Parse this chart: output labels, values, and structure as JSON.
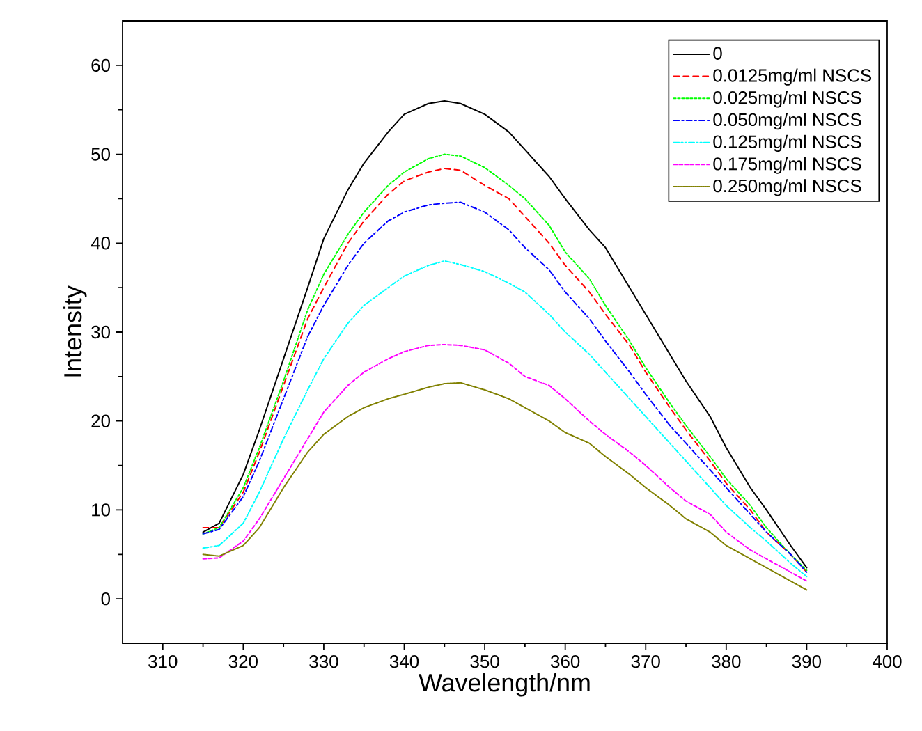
{
  "chart_data": {
    "type": "line",
    "xlabel": "Wavelength/nm",
    "ylabel": "Intensity",
    "xlim": [
      305,
      400
    ],
    "ylim": [
      -5,
      65
    ],
    "xticks": [
      310,
      320,
      330,
      340,
      350,
      360,
      370,
      380,
      390,
      400
    ],
    "yticks": [
      0,
      10,
      20,
      30,
      40,
      50,
      60
    ],
    "legend": "top right",
    "grid": false,
    "x": [
      315,
      317,
      320,
      322,
      325,
      328,
      330,
      333,
      335,
      338,
      340,
      343,
      345,
      347,
      350,
      353,
      355,
      358,
      360,
      363,
      365,
      368,
      370,
      373,
      375,
      378,
      380,
      383,
      385,
      388,
      390
    ],
    "series": [
      {
        "name": "0",
        "color": "#000000",
        "line_style": "solid",
        "values": [
          7.5,
          8.5,
          14,
          19,
          27,
          35,
          40.5,
          46,
          49,
          52.5,
          54.5,
          55.7,
          56,
          55.7,
          54.5,
          52.5,
          50.5,
          47.5,
          45,
          41.5,
          39.5,
          35,
          32,
          27.5,
          24.5,
          20.5,
          17,
          12.5,
          10,
          6,
          3.5
        ]
      },
      {
        "name": "0.0125mg/ml NSCS",
        "color": "#ff0000",
        "line_style": "dashed",
        "values": [
          8,
          8,
          12,
          16.5,
          24,
          31.5,
          35,
          40,
          42.5,
          45.5,
          47,
          48,
          48.4,
          48.2,
          46.5,
          45,
          43,
          40,
          37.5,
          34.5,
          32,
          28.5,
          25.5,
          21.5,
          19,
          15.5,
          13,
          10,
          7.5,
          5,
          3
        ]
      },
      {
        "name": "0.025mg/ml NSCS",
        "color": "#00ff00",
        "line_style": "dotted",
        "values": [
          7.3,
          8,
          12.5,
          17,
          24.5,
          32.5,
          36.5,
          41,
          43.5,
          46.5,
          48,
          49.5,
          50,
          49.8,
          48.5,
          46.5,
          45,
          42,
          39,
          36,
          33,
          29,
          26,
          22,
          19.5,
          16,
          13.5,
          10.5,
          8,
          5,
          3.2
        ]
      },
      {
        "name": "0.050mg/ml NSCS",
        "color": "#0000ff",
        "line_style": "dashdot",
        "values": [
          7.3,
          7.8,
          11.5,
          15.5,
          22.5,
          29.5,
          33,
          37.5,
          40,
          42.5,
          43.5,
          44.3,
          44.5,
          44.6,
          43.5,
          41.5,
          39.5,
          37,
          34.5,
          31.5,
          29,
          25.5,
          23,
          19.5,
          17.5,
          14.5,
          12.5,
          9.5,
          7.5,
          5,
          3
        ]
      },
      {
        "name": "0.125mg/ml NSCS",
        "color": "#00ffff",
        "line_style": "dashdotdot",
        "values": [
          5.7,
          6,
          8.5,
          12,
          18,
          23.5,
          27,
          31,
          33,
          35,
          36.3,
          37.5,
          38,
          37.6,
          36.8,
          35.5,
          34.5,
          32,
          30,
          27.5,
          25.5,
          22.5,
          20.5,
          17.5,
          15.5,
          12.5,
          10.5,
          8,
          6.5,
          4,
          2.5
        ]
      },
      {
        "name": "0.175mg/ml NSCS",
        "color": "#ff00ff",
        "line_style": "shortdashed",
        "values": [
          4.5,
          4.6,
          6.5,
          9,
          13.5,
          18,
          21,
          24,
          25.5,
          27,
          27.8,
          28.5,
          28.6,
          28.5,
          28,
          26.5,
          25,
          24,
          22.5,
          20,
          18.5,
          16.5,
          15,
          12.5,
          11,
          9.5,
          7.5,
          5.5,
          4.5,
          3,
          2
        ]
      },
      {
        "name": "0.250mg/ml NSCS",
        "color": "#808000",
        "line_style": "densedotted",
        "values": [
          5,
          4.8,
          6,
          8,
          12.5,
          16.5,
          18.5,
          20.5,
          21.5,
          22.5,
          23,
          23.8,
          24.2,
          24.3,
          23.5,
          22.5,
          21.5,
          20,
          18.7,
          17.5,
          16,
          14,
          12.5,
          10.5,
          9,
          7.5,
          6,
          4.5,
          3.5,
          2,
          1
        ]
      }
    ]
  }
}
